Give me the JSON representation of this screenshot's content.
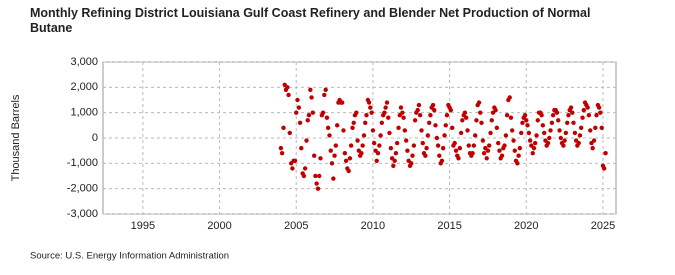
{
  "chart_data": {
    "type": "scatter",
    "title": "Monthly Refining District Louisiana Gulf Coast Refinery and Blender Net Production of Normal Butane",
    "y_label": "Thousand Barrels",
    "source": "Source: U.S. Energy Information Administration",
    "color": "#c00000",
    "grid": true,
    "xlim": [
      1992.4,
      2025.85
    ],
    "xticks": [
      1995,
      2000,
      2005,
      2010,
      2015,
      2020,
      2025
    ],
    "ylim": [
      -3000,
      3000
    ],
    "yticks": [
      {
        "value": -3000,
        "label": "-3,000"
      },
      {
        "value": -2000,
        "label": "-2,000"
      },
      {
        "value": -1000,
        "label": "-1,000"
      },
      0,
      {
        "value": 1000,
        "label": "1,000"
      },
      {
        "value": 2000,
        "label": "2,000"
      },
      {
        "value": 3000,
        "label": "3,000"
      }
    ],
    "x": [
      2004,
      2004.08,
      2004.17,
      2004.25,
      2004.33,
      2004.42,
      2004.5,
      2004.58,
      2004.67,
      2004.75,
      2004.83,
      2004.92,
      2005,
      2005.08,
      2005.17,
      2005.25,
      2005.33,
      2005.42,
      2005.5,
      2005.58,
      2005.67,
      2005.75,
      2005.83,
      2005.92,
      2006,
      2006.08,
      2006.17,
      2006.25,
      2006.33,
      2006.42,
      2006.5,
      2006.58,
      2006.67,
      2006.75,
      2006.83,
      2006.92,
      2007,
      2007.08,
      2007.17,
      2007.25,
      2007.33,
      2007.42,
      2007.5,
      2007.58,
      2007.67,
      2007.75,
      2007.83,
      2007.92,
      2008,
      2008.08,
      2008.17,
      2008.25,
      2008.33,
      2008.42,
      2008.5,
      2008.58,
      2008.67,
      2008.75,
      2008.83,
      2008.92,
      2009,
      2009.08,
      2009.17,
      2009.25,
      2009.33,
      2009.42,
      2009.5,
      2009.58,
      2009.67,
      2009.75,
      2009.83,
      2009.92,
      2010,
      2010.08,
      2010.17,
      2010.25,
      2010.33,
      2010.42,
      2010.5,
      2010.58,
      2010.67,
      2010.75,
      2010.83,
      2010.92,
      2011,
      2011.08,
      2011.17,
      2011.25,
      2011.33,
      2011.42,
      2011.5,
      2011.58,
      2011.67,
      2011.75,
      2011.83,
      2011.92,
      2012,
      2012.08,
      2012.17,
      2012.25,
      2012.33,
      2012.42,
      2012.5,
      2012.58,
      2012.67,
      2012.75,
      2012.83,
      2012.92,
      2013,
      2013.08,
      2013.17,
      2013.25,
      2013.33,
      2013.42,
      2013.5,
      2013.58,
      2013.67,
      2013.75,
      2013.83,
      2013.92,
      2014,
      2014.08,
      2014.17,
      2014.25,
      2014.33,
      2014.42,
      2014.5,
      2014.58,
      2014.67,
      2014.75,
      2014.83,
      2014.92,
      2015,
      2015.08,
      2015.17,
      2015.25,
      2015.33,
      2015.42,
      2015.5,
      2015.58,
      2015.67,
      2015.75,
      2015.83,
      2015.92,
      2016,
      2016.08,
      2016.17,
      2016.25,
      2016.33,
      2016.42,
      2016.5,
      2016.58,
      2016.67,
      2016.75,
      2016.83,
      2016.92,
      2017,
      2017.08,
      2017.17,
      2017.25,
      2017.33,
      2017.42,
      2017.5,
      2017.58,
      2017.67,
      2017.75,
      2017.83,
      2017.92,
      2018,
      2018.08,
      2018.17,
      2018.25,
      2018.33,
      2018.42,
      2018.5,
      2018.58,
      2018.67,
      2018.75,
      2018.83,
      2018.92,
      2019,
      2019.08,
      2019.17,
      2019.25,
      2019.33,
      2019.42,
      2019.5,
      2019.58,
      2019.67,
      2019.75,
      2019.83,
      2019.92,
      2020,
      2020.08,
      2020.17,
      2020.25,
      2020.33,
      2020.42,
      2020.5,
      2020.58,
      2020.67,
      2020.75,
      2020.83,
      2020.92,
      2021,
      2021.08,
      2021.17,
      2021.25,
      2021.33,
      2021.42,
      2021.5,
      2021.58,
      2021.67,
      2021.75,
      2021.83,
      2021.92,
      2022,
      2022.08,
      2022.17,
      2022.25,
      2022.33,
      2022.42,
      2022.5,
      2022.58,
      2022.67,
      2022.75,
      2022.83,
      2022.92,
      2023,
      2023.08,
      2023.17,
      2023.25,
      2023.33,
      2023.42,
      2023.5,
      2023.58,
      2023.67,
      2023.75,
      2023.83,
      2023.92,
      2024,
      2024.08,
      2024.17,
      2024.25,
      2024.33,
      2024.42,
      2024.5,
      2024.58,
      2024.67,
      2024.75,
      2024.83,
      2024.92,
      2025,
      2025.08,
      2025.17
    ],
    "values": [
      -400,
      -600,
      400,
      2100,
      1900,
      2000,
      1700,
      200,
      -1000,
      -1200,
      -900,
      -900,
      1000,
      1500,
      1200,
      600,
      -400,
      -1400,
      -1500,
      -1200,
      -100,
      700,
      900,
      1900,
      1600,
      1000,
      -700,
      -1500,
      -1800,
      -2000,
      -1500,
      -800,
      900,
      1000,
      1700,
      1900,
      800,
      400,
      100,
      -500,
      -1000,
      -1600,
      -700,
      -300,
      500,
      1400,
      1500,
      1400,
      1400,
      300,
      -600,
      -900,
      -1200,
      -1300,
      -800,
      -300,
      400,
      600,
      900,
      1000,
      -100,
      -500,
      -700,
      -600,
      -300,
      100,
      600,
      900,
      1500,
      1400,
      1200,
      1000,
      300,
      -200,
      -500,
      -900,
      -600,
      -300,
      100,
      600,
      900,
      1000,
      1200,
      1400,
      800,
      200,
      -400,
      -800,
      -1100,
      -900,
      -600,
      -200,
      400,
      900,
      1200,
      1000,
      800,
      300,
      -100,
      -500,
      -900,
      -1100,
      -1000,
      -700,
      -300,
      700,
      1000,
      1100,
      1300,
      900,
      300,
      -200,
      -600,
      -700,
      -400,
      100,
      600,
      900,
      1200,
      1300,
      1100,
      500,
      0,
      -300,
      -700,
      -1000,
      -900,
      -400,
      100,
      500,
      900,
      1300,
      1200,
      1100,
      400,
      -300,
      -200,
      -500,
      -700,
      -800,
      -400,
      200,
      700,
      900,
      1000,
      800,
      300,
      -300,
      -600,
      -700,
      -600,
      -300,
      100,
      700,
      1300,
      1400,
      1000,
      600,
      -100,
      -600,
      -400,
      -800,
      -500,
      -300,
      200,
      700,
      1000,
      1200,
      1100,
      400,
      -200,
      -500,
      -800,
      -700,
      -400,
      -300,
      100,
      900,
      1500,
      1600,
      800,
      300,
      -100,
      -500,
      -900,
      -1000,
      -700,
      -400,
      200,
      600,
      800,
      900,
      700,
      500,
      200,
      -100,
      -300,
      -600,
      -400,
      -200,
      100,
      700,
      1000,
      1000,
      900,
      500,
      200,
      -100,
      -300,
      -200,
      0,
      300,
      600,
      900,
      1100,
      1100,
      1000,
      700,
      300,
      0,
      -200,
      -300,
      -100,
      200,
      600,
      900,
      1100,
      1200,
      1000,
      600,
      200,
      -100,
      -300,
      -200,
      100,
      400,
      800,
      1100,
      1400,
      1300,
      1200,
      900,
      300,
      -200,
      -400,
      -100,
      400,
      900,
      1300,
      1200,
      1000,
      400,
      -1100,
      -1200,
      -600
    ]
  }
}
